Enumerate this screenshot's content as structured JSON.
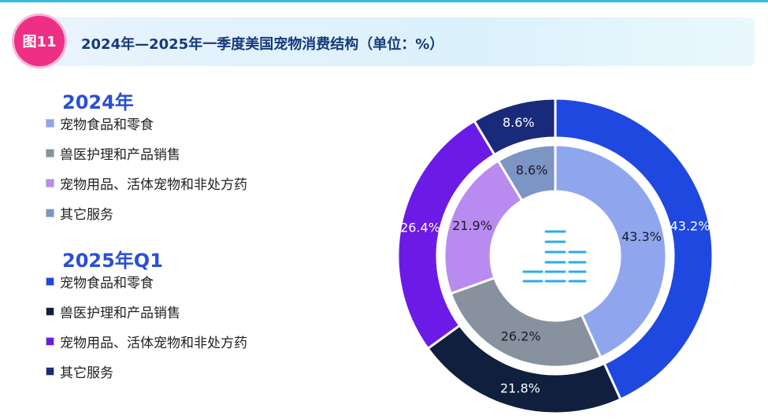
{
  "header": {
    "badge": "图11",
    "title": "2024年—2025年一季度美国宠物消费结构（单位：%）"
  },
  "chart_data": {
    "type": "donut",
    "title": "2024年—2025年一季度美国宠物消费结构（单位：%）",
    "unit": "%",
    "categories": [
      "宠物食品和零食",
      "兽医护理和产品销售",
      "宠物用品、活体宠物和非处方药",
      "其它服务"
    ],
    "series": [
      {
        "name": "2024年",
        "ring": "inner",
        "values": [
          43.3,
          26.2,
          21.9,
          8.6
        ],
        "colors": [
          "#8fa6ee",
          "#87929e",
          "#b98bf0",
          "#7d95c4"
        ],
        "labels": [
          "43.3%",
          "26.2%",
          "21.9%",
          "8.6%"
        ]
      },
      {
        "name": "2025年Q1",
        "ring": "outer",
        "values": [
          43.2,
          21.8,
          26.4,
          8.6
        ],
        "colors": [
          "#1f48e0",
          "#0f1f3d",
          "#6c1ae6",
          "#1a2a7a"
        ],
        "labels": [
          "43.2%",
          "21.8%",
          "26.4%",
          "8.6%"
        ]
      }
    ],
    "legend": "left",
    "center_icon": "bar-lines-icon"
  }
}
